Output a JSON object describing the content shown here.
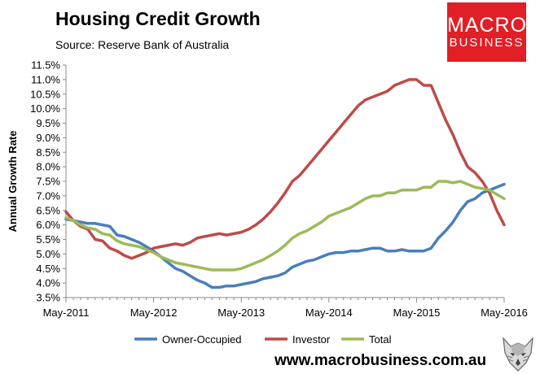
{
  "header": {
    "title": "Housing Credit Growth",
    "subtitle": "Source: Reserve Bank of Australia"
  },
  "logo": {
    "line1": "MACRO",
    "line2": "BUSINESS",
    "color": "#e01f26"
  },
  "footer": {
    "url": "www.macrobusiness.com.au"
  },
  "chart_data": {
    "type": "line",
    "ylabel": "Annual Growth Rate",
    "ylim": [
      3.5,
      11.5
    ],
    "y_ticks": [
      "3.5%",
      "4.0%",
      "4.5%",
      "5.0%",
      "5.5%",
      "6.0%",
      "6.5%",
      "7.0%",
      "7.5%",
      "8.0%",
      "8.5%",
      "9.0%",
      "9.5%",
      "10.0%",
      "10.5%",
      "11.0%",
      "11.5%"
    ],
    "x_ticks": [
      "May-2011",
      "May-2012",
      "May-2013",
      "May-2014",
      "May-2015",
      "May-2016"
    ],
    "x_months": [
      "May-2011",
      "Jun-2011",
      "Jul-2011",
      "Aug-2011",
      "Sep-2011",
      "Oct-2011",
      "Nov-2011",
      "Dec-2011",
      "Jan-2012",
      "Feb-2012",
      "Mar-2012",
      "Apr-2012",
      "May-2012",
      "Jun-2012",
      "Jul-2012",
      "Aug-2012",
      "Sep-2012",
      "Oct-2012",
      "Nov-2012",
      "Dec-2012",
      "Jan-2013",
      "Feb-2013",
      "Mar-2013",
      "Apr-2013",
      "May-2013",
      "Jun-2013",
      "Jul-2013",
      "Aug-2013",
      "Sep-2013",
      "Oct-2013",
      "Nov-2013",
      "Dec-2013",
      "Jan-2014",
      "Feb-2014",
      "Mar-2014",
      "Apr-2014",
      "May-2014",
      "Jun-2014",
      "Jul-2014",
      "Aug-2014",
      "Sep-2014",
      "Oct-2014",
      "Nov-2014",
      "Dec-2014",
      "Jan-2015",
      "Feb-2015",
      "Mar-2015",
      "Apr-2015",
      "May-2015",
      "Jun-2015",
      "Jul-2015",
      "Aug-2015",
      "Sep-2015",
      "Oct-2015",
      "Nov-2015",
      "Dec-2015",
      "Jan-2016",
      "Feb-2016",
      "Mar-2016",
      "Apr-2016",
      "May-2016"
    ],
    "grid": false,
    "legend_position": "bottom",
    "series": [
      {
        "name": "Owner-Occupied",
        "color": "#4a7ebb",
        "values": [
          6.2,
          6.15,
          6.1,
          6.05,
          6.05,
          6.0,
          5.95,
          5.65,
          5.6,
          5.5,
          5.4,
          5.25,
          5.1,
          4.9,
          4.7,
          4.5,
          4.4,
          4.25,
          4.1,
          4.0,
          3.85,
          3.85,
          3.9,
          3.9,
          3.95,
          4.0,
          4.05,
          4.15,
          4.2,
          4.25,
          4.35,
          4.55,
          4.65,
          4.75,
          4.8,
          4.9,
          5.0,
          5.05,
          5.05,
          5.1,
          5.1,
          5.15,
          5.2,
          5.2,
          5.1,
          5.1,
          5.15,
          5.1,
          5.1,
          5.1,
          5.2,
          5.55,
          5.8,
          6.1,
          6.5,
          6.8,
          6.9,
          7.1,
          7.2,
          7.3,
          7.4
        ]
      },
      {
        "name": "Investor",
        "color": "#be4b48",
        "values": [
          6.45,
          6.15,
          5.95,
          5.85,
          5.5,
          5.45,
          5.2,
          5.1,
          4.95,
          4.85,
          4.95,
          5.05,
          5.2,
          5.25,
          5.3,
          5.35,
          5.3,
          5.4,
          5.55,
          5.6,
          5.65,
          5.7,
          5.65,
          5.7,
          5.75,
          5.85,
          6.0,
          6.2,
          6.45,
          6.75,
          7.1,
          7.5,
          7.7,
          8.0,
          8.3,
          8.6,
          8.9,
          9.2,
          9.5,
          9.8,
          10.1,
          10.3,
          10.4,
          10.5,
          10.6,
          10.8,
          10.9,
          11.0,
          11.0,
          10.8,
          10.8,
          10.2,
          9.6,
          9.1,
          8.5,
          8.0,
          7.8,
          7.5,
          7.1,
          6.5,
          6.0
        ]
      },
      {
        "name": "Total",
        "color": "#9bbb59",
        "values": [
          6.25,
          6.15,
          6.0,
          5.9,
          5.85,
          5.7,
          5.65,
          5.45,
          5.35,
          5.3,
          5.25,
          5.15,
          5.05,
          4.9,
          4.8,
          4.7,
          4.65,
          4.6,
          4.55,
          4.5,
          4.45,
          4.45,
          4.45,
          4.45,
          4.5,
          4.6,
          4.7,
          4.8,
          4.95,
          5.1,
          5.3,
          5.55,
          5.7,
          5.8,
          5.95,
          6.1,
          6.3,
          6.4,
          6.5,
          6.6,
          6.75,
          6.9,
          7.0,
          7.0,
          7.1,
          7.1,
          7.2,
          7.2,
          7.2,
          7.3,
          7.3,
          7.5,
          7.5,
          7.45,
          7.5,
          7.4,
          7.3,
          7.25,
          7.2,
          7.05,
          6.9
        ]
      }
    ]
  }
}
